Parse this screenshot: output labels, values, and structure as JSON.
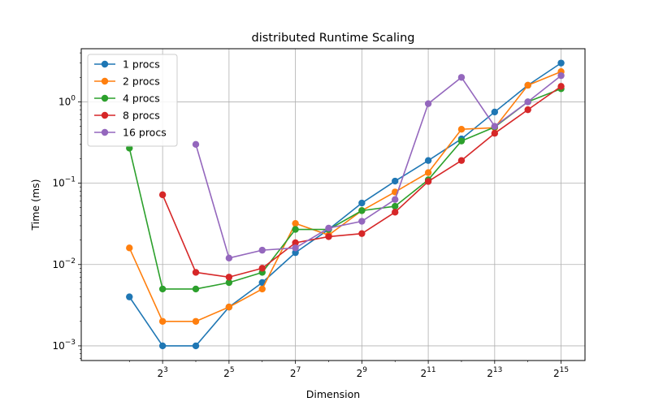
{
  "chart_data": {
    "type": "line",
    "title": "distributed Runtime Scaling",
    "xlabel": "Dimension",
    "ylabel": "Time (ms)",
    "x_scale": "log2",
    "y_scale": "log10",
    "xlim_exponent": [
      0.55,
      15.72
    ],
    "ylim": [
      0.00066,
      4.5
    ],
    "x_ticks": [
      {
        "base": "2",
        "exp": "3",
        "value": 8
      },
      {
        "base": "2",
        "exp": "5",
        "value": 32
      },
      {
        "base": "2",
        "exp": "7",
        "value": 128
      },
      {
        "base": "2",
        "exp": "9",
        "value": 512
      },
      {
        "base": "2",
        "exp": "11",
        "value": 2048
      },
      {
        "base": "2",
        "exp": "13",
        "value": 8192
      },
      {
        "base": "2",
        "exp": "15",
        "value": 32768
      }
    ],
    "y_ticks": [
      {
        "base": "10",
        "exp": "−3",
        "value": 0.001
      },
      {
        "base": "10",
        "exp": "−2",
        "value": 0.01
      },
      {
        "base": "10",
        "exp": "−1",
        "value": 0.1
      },
      {
        "base": "10",
        "exp": "0",
        "value": 1
      }
    ],
    "grid": true,
    "legend_position": "top-left",
    "series": [
      {
        "name": "1 procs",
        "color": "#1f77b4",
        "x": [
          4,
          8,
          16,
          32,
          64,
          128,
          256,
          512,
          1024,
          2048,
          4096,
          8192,
          16384,
          32768
        ],
        "y": [
          0.004,
          0.001,
          0.001,
          0.003,
          0.006,
          0.014,
          0.027,
          0.057,
          0.106,
          0.19,
          0.35,
          0.75,
          1.6,
          3.0
        ]
      },
      {
        "name": "2 procs",
        "color": "#ff7f0e",
        "x": [
          4,
          8,
          16,
          32,
          64,
          128,
          256,
          512,
          1024,
          2048,
          4096,
          8192,
          16384,
          32768
        ],
        "y": [
          0.016,
          0.002,
          0.002,
          0.003,
          0.005,
          0.032,
          0.023,
          0.046,
          0.078,
          0.135,
          0.46,
          0.48,
          1.6,
          2.35
        ]
      },
      {
        "name": "4 procs",
        "color": "#2ca02c",
        "x": [
          4,
          8,
          16,
          32,
          64,
          128,
          256,
          512,
          1024,
          2048,
          4096,
          8192,
          16384,
          32768
        ],
        "y": [
          0.27,
          0.005,
          0.005,
          0.006,
          0.008,
          0.027,
          0.027,
          0.046,
          0.052,
          0.11,
          0.33,
          0.49,
          1.0,
          1.45
        ]
      },
      {
        "name": "8 procs",
        "color": "#d62728",
        "x": [
          8,
          16,
          32,
          64,
          128,
          256,
          512,
          1024,
          2048,
          4096,
          8192,
          16384,
          32768
        ],
        "y": [
          0.072,
          0.008,
          0.007,
          0.009,
          0.0185,
          0.022,
          0.024,
          0.044,
          0.105,
          0.19,
          0.41,
          0.8,
          1.55
        ]
      },
      {
        "name": "16 procs",
        "color": "#9467bd",
        "x": [
          16,
          32,
          64,
          128,
          256,
          512,
          1024,
          2048,
          4096,
          8192,
          16384,
          32768
        ],
        "y": [
          0.3,
          0.012,
          0.015,
          0.016,
          0.028,
          0.034,
          0.063,
          0.95,
          2.0,
          0.5,
          1.0,
          2.1
        ]
      }
    ]
  }
}
